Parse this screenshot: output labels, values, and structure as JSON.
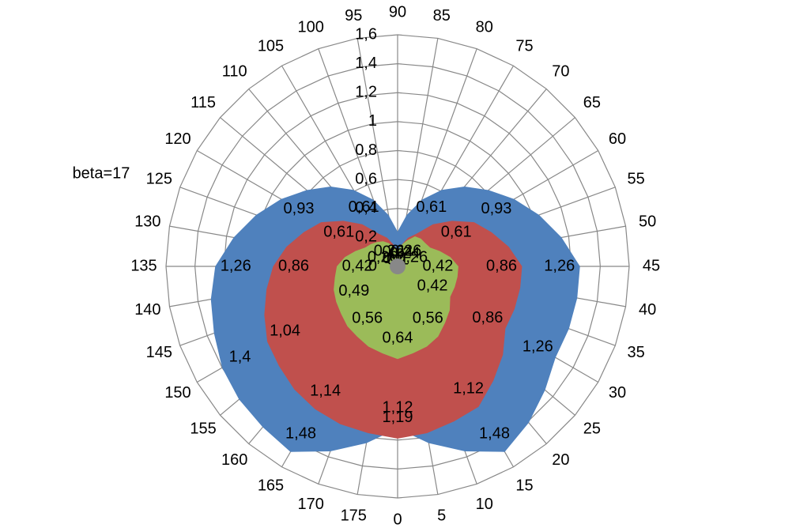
{
  "chart_data": {
    "type": "radar",
    "annotation": "beta=17",
    "categories": [
      "90",
      "85",
      "80",
      "75",
      "70",
      "65",
      "60",
      "55",
      "50",
      "45",
      "40",
      "35",
      "30",
      "25",
      "20",
      "15",
      "10",
      "5",
      "0",
      "175",
      "170",
      "165",
      "160",
      "155",
      "150",
      "145",
      "140",
      "135",
      "130",
      "125",
      "120",
      "115",
      "110",
      "105",
      "100",
      "95"
    ],
    "rlim": [
      0,
      1.6
    ],
    "rticks": [
      0,
      {
        "value": 0.2,
        "label": "0,2"
      },
      {
        "value": 0.4,
        "label": "0,4"
      },
      {
        "value": 0.6,
        "label": "0,6"
      },
      {
        "value": 0.8,
        "label": "0,8"
      },
      1,
      {
        "value": 1.2,
        "label": "1,2"
      },
      {
        "value": 1.4,
        "label": "1,4"
      },
      {
        "value": 1.6,
        "label": "1,6"
      }
    ],
    "grid": true,
    "series": [
      {
        "color": "#4f81bd",
        "values": [
          0.24,
          0.36,
          0.49,
          0.61,
          0.72,
          0.82,
          0.93,
          1.04,
          1.15,
          1.26,
          1.26,
          1.26,
          1.26,
          1.33,
          1.41,
          1.48,
          1.36,
          1.24,
          1.12,
          1.24,
          1.36,
          1.48,
          1.45,
          1.43,
          1.4,
          1.35,
          1.31,
          1.26,
          1.15,
          1.04,
          0.93,
          0.82,
          0.72,
          0.61,
          0.49,
          0.36
        ],
        "value_labels": [
          "0,24",
          null,
          null,
          "0,61",
          null,
          null,
          "0,93",
          null,
          null,
          "1,26",
          null,
          null,
          "1,26",
          null,
          null,
          "1,48",
          null,
          null,
          "1,12",
          null,
          null,
          "1,48",
          null,
          null,
          "1,4",
          null,
          null,
          "1,26",
          null,
          null,
          "0,93",
          null,
          null,
          "0,61",
          null,
          null
        ]
      },
      {
        "color": "#c0504d",
        "values": [
          0.1,
          0.15,
          0.21,
          0.26,
          0.38,
          0.49,
          0.61,
          0.69,
          0.78,
          0.86,
          0.86,
          0.86,
          0.86,
          0.95,
          1.03,
          1.12,
          1.14,
          1.17,
          1.19,
          1.17,
          1.16,
          1.14,
          1.11,
          1.07,
          1.04,
          0.98,
          0.92,
          0.86,
          0.78,
          0.69,
          0.61,
          0.49,
          0.38,
          0.26,
          0.21,
          0.15
        ],
        "value_labels": [
          "0,1",
          null,
          null,
          "0,26",
          null,
          null,
          "0,61",
          null,
          null,
          "0,86",
          null,
          null,
          "0,86",
          null,
          null,
          "1,12",
          null,
          null,
          "1,19",
          null,
          null,
          "1,14",
          null,
          null,
          "1,04",
          null,
          null,
          "0,86",
          null,
          null,
          "0,61",
          null,
          null,
          "0,26",
          null,
          null
        ]
      },
      {
        "color": "#9bbb59",
        "values": [
          0.1,
          0.15,
          0.19,
          0.24,
          0.25,
          0.25,
          0.26,
          0.31,
          0.37,
          0.42,
          0.42,
          0.42,
          0.42,
          0.47,
          0.51,
          0.56,
          0.59,
          0.61,
          0.64,
          0.61,
          0.59,
          0.56,
          0.54,
          0.51,
          0.49,
          0.47,
          0.44,
          0.42,
          0.37,
          0.31,
          0.26,
          0.24,
          0.22,
          0.2,
          0.17,
          0.13
        ],
        "value_labels": [
          "0,1",
          null,
          null,
          "0,24",
          null,
          null,
          "0,26",
          null,
          null,
          "0,42",
          null,
          null,
          "0,42",
          null,
          null,
          "0,56",
          null,
          null,
          "0,64",
          null,
          null,
          "0,56",
          null,
          null,
          "0,49",
          null,
          null,
          "0,42",
          null,
          null,
          "0,26",
          null,
          null,
          "0,2",
          null,
          null
        ]
      }
    ]
  }
}
